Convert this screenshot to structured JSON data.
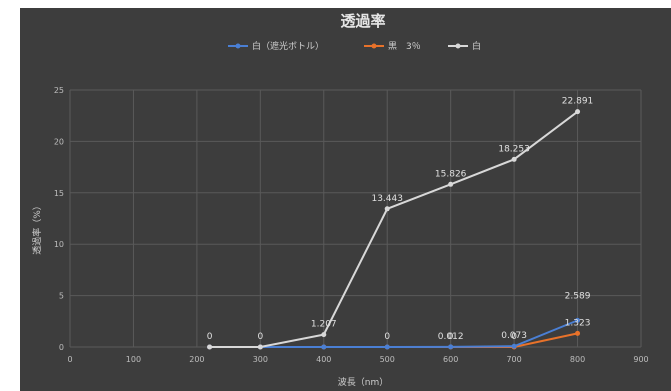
{
  "chart_data": {
    "type": "line",
    "title": "透過率",
    "xlabel": "波長（nm）",
    "ylabel": "透過率（%）",
    "xlim": [
      0,
      900
    ],
    "ylim": [
      0,
      25
    ],
    "x_ticks": [
      0,
      100,
      200,
      300,
      400,
      500,
      600,
      700,
      800,
      900
    ],
    "y_ticks": [
      0,
      5,
      10,
      15,
      20,
      25
    ],
    "grid": true,
    "legend_position": "top",
    "series": [
      {
        "name": "白（遮光ボトル）",
        "color": "#4a7fd4",
        "x": [
          220,
          300,
          400,
          500,
          600,
          700,
          800
        ],
        "y": [
          0,
          0,
          0,
          0,
          0.012,
          0.073,
          2.589
        ],
        "labels": [
          "",
          "",
          "",
          "",
          "0.012",
          "0.073",
          "2.589"
        ]
      },
      {
        "name": "黒　3％",
        "color": "#e8722a",
        "x": [
          220,
          300,
          400,
          500,
          600,
          700,
          800
        ],
        "y": [
          0,
          0,
          0,
          0,
          0,
          0,
          1.323
        ],
        "labels": [
          "0",
          "0",
          "",
          "0",
          "0",
          "0",
          "1.323"
        ]
      },
      {
        "name": "白",
        "color": "#d8d8d8",
        "x": [
          220,
          300,
          400,
          500,
          600,
          700,
          800
        ],
        "y": [
          0,
          0,
          1.207,
          13.443,
          15.826,
          18.253,
          22.891
        ],
        "labels": [
          "",
          "",
          "1.207",
          "13.443",
          "15.826",
          "18.253",
          "22.891"
        ]
      }
    ]
  }
}
